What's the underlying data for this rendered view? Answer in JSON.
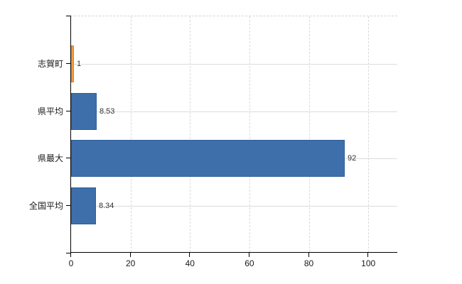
{
  "chart_data": {
    "type": "bar",
    "orientation": "horizontal",
    "title": "",
    "xlabel": "",
    "ylabel": "",
    "categories": [
      "志賀町",
      "県平均",
      "県最大",
      "全国平均"
    ],
    "values": [
      1,
      8.53,
      92,
      8.34
    ],
    "value_labels": [
      "1",
      "8.53",
      "92",
      "8.34"
    ],
    "x_ticks": [
      0,
      20,
      40,
      60,
      80,
      100
    ],
    "xlim": [
      0,
      110
    ],
    "grid": true,
    "legend": false,
    "colors": {
      "bar_default": "#3e6fab",
      "bar_default_border": "#2e5e97",
      "bar_highlight": "#f59e38",
      "bar_highlight_border": "#e07f1e",
      "highlight_index": 0,
      "axis": "#000000",
      "grid_v": "#d9d9d9",
      "grid_h": "#dcdcdc",
      "text": "#1a1a1a",
      "value_text": "#333333",
      "background": "#ffffff"
    }
  }
}
